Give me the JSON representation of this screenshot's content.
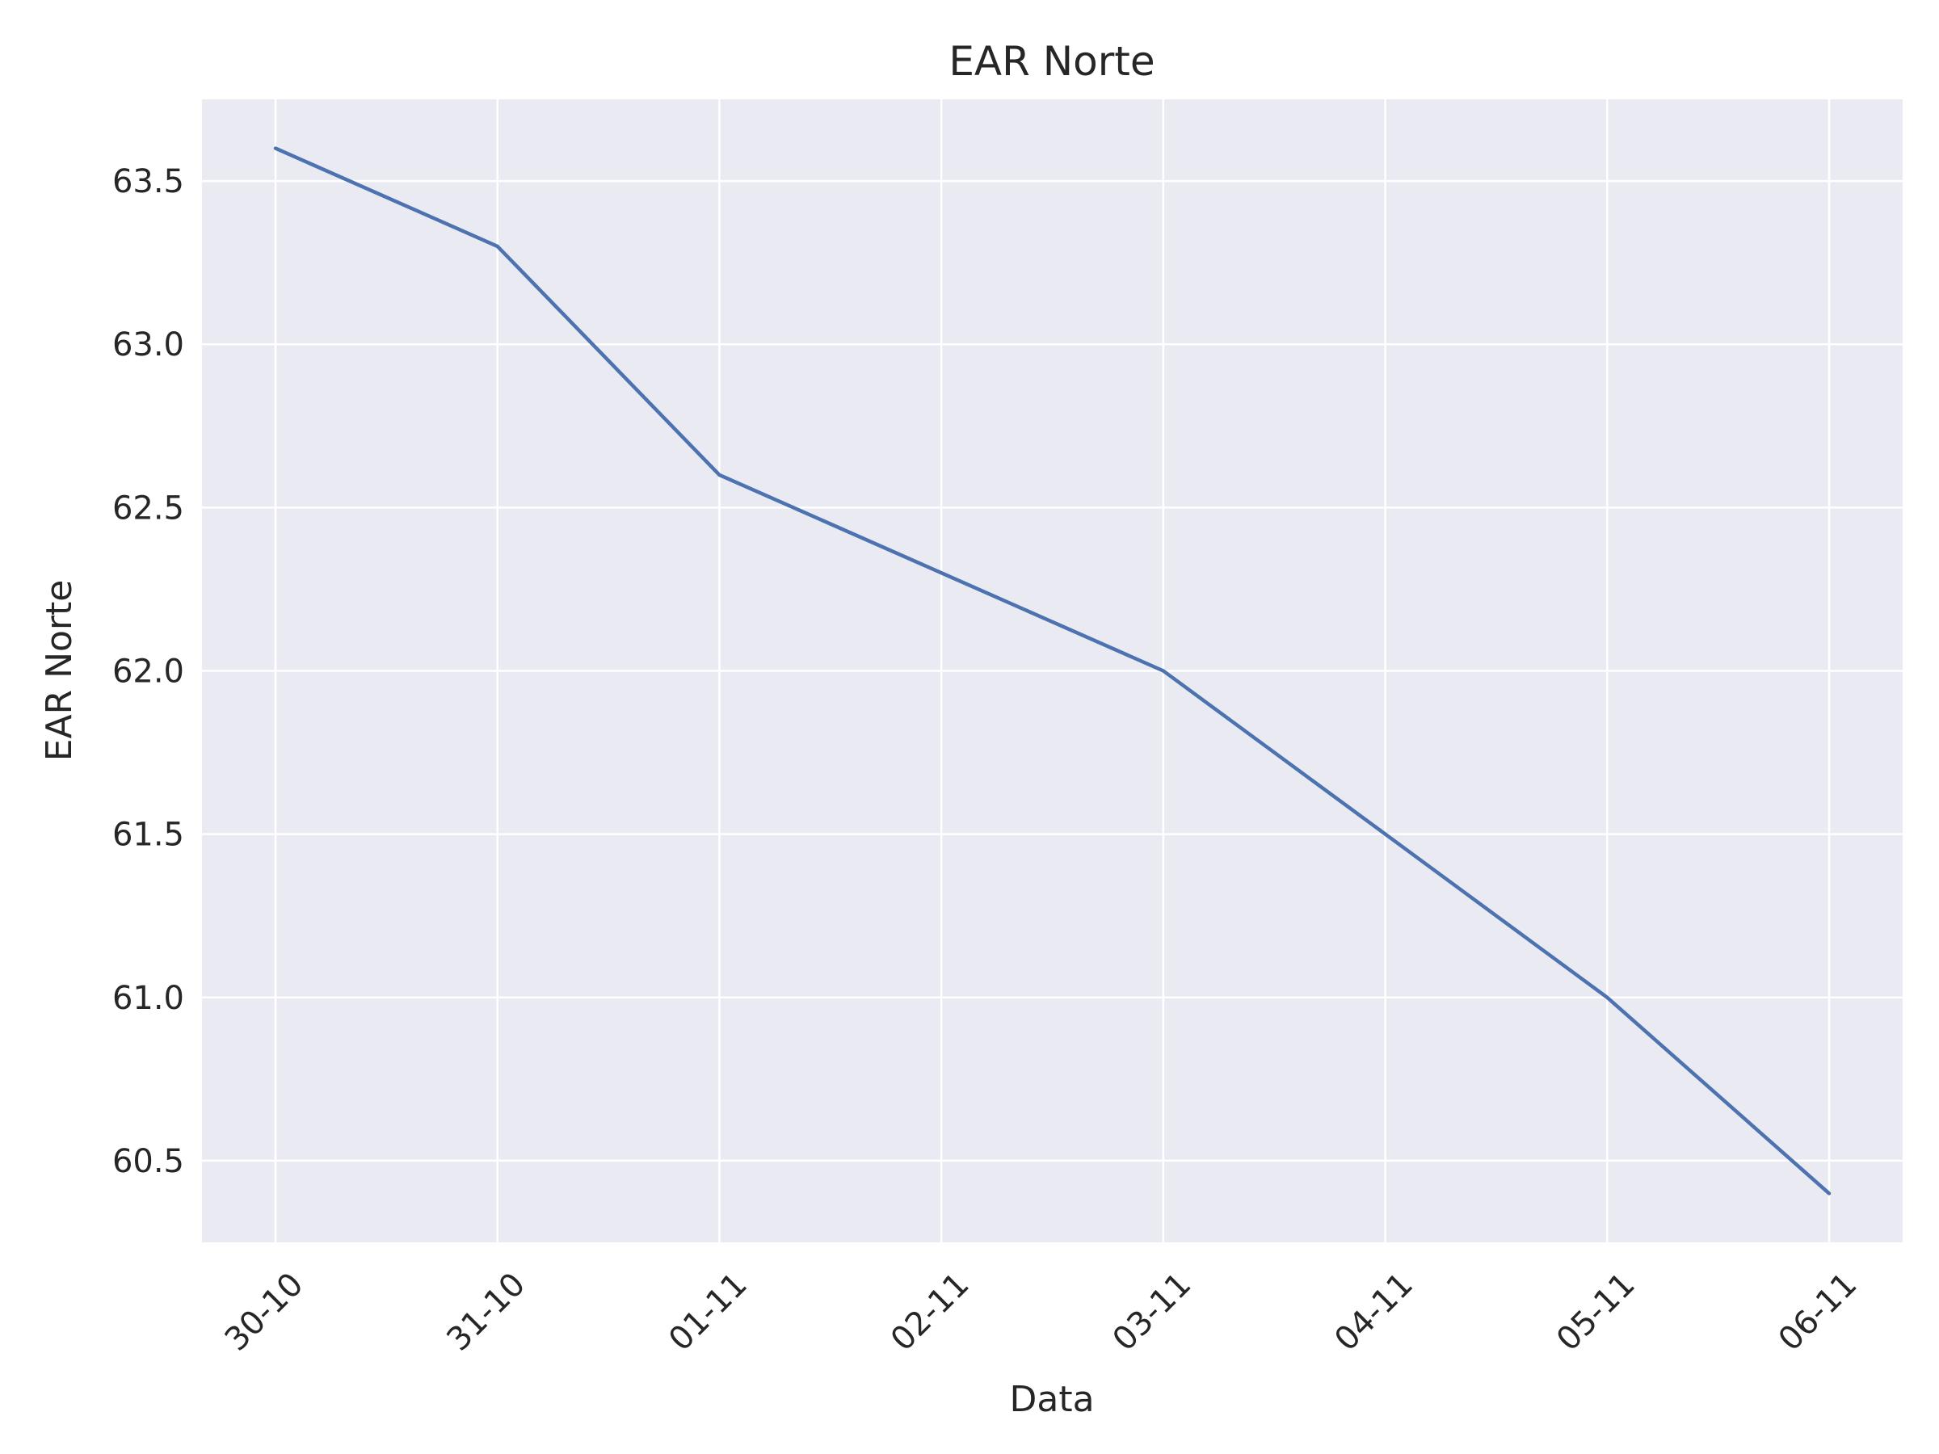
{
  "chart_data": {
    "type": "line",
    "title": "EAR Norte",
    "xlabel": "Data",
    "ylabel": "EAR Norte",
    "categories": [
      "30-10",
      "31-10",
      "01-11",
      "02-11",
      "03-11",
      "04-11",
      "05-11",
      "06-11"
    ],
    "series": [
      {
        "values": [
          63.6,
          63.3,
          62.6,
          62.3,
          62.0,
          61.5,
          61.0,
          60.4
        ],
        "color": "#4c72b0"
      }
    ],
    "ylim": [
      60.25,
      63.75
    ],
    "yticks": [
      "60.5",
      "61.0",
      "61.5",
      "62.0",
      "62.5",
      "63.0",
      "63.5"
    ],
    "grid": true,
    "legend": "none",
    "background": "#eaeaf2"
  }
}
